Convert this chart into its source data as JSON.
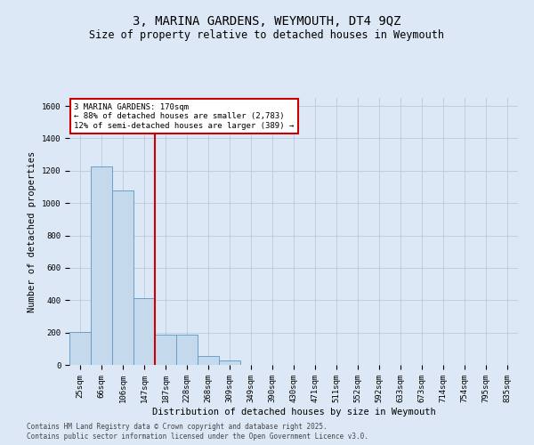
{
  "title_line1": "3, MARINA GARDENS, WEYMOUTH, DT4 9QZ",
  "title_line2": "Size of property relative to detached houses in Weymouth",
  "xlabel": "Distribution of detached houses by size in Weymouth",
  "ylabel": "Number of detached properties",
  "categories": [
    "25sqm",
    "66sqm",
    "106sqm",
    "147sqm",
    "187sqm",
    "228sqm",
    "268sqm",
    "309sqm",
    "349sqm",
    "390sqm",
    "430sqm",
    "471sqm",
    "511sqm",
    "552sqm",
    "592sqm",
    "633sqm",
    "673sqm",
    "714sqm",
    "754sqm",
    "795sqm",
    "835sqm"
  ],
  "values": [
    205,
    1225,
    1080,
    415,
    185,
    185,
    55,
    30,
    0,
    0,
    0,
    0,
    0,
    0,
    0,
    0,
    0,
    0,
    0,
    0,
    0
  ],
  "bar_color": "#c5d9ec",
  "bar_edge_color": "#6a9fc8",
  "grid_color": "#c0cfe0",
  "background_color": "#dce8f5",
  "vline_x_index": 4.0,
  "annotation_text": "3 MARINA GARDENS: 170sqm\n← 88% of detached houses are smaller (2,783)\n12% of semi-detached houses are larger (389) →",
  "annotation_box_facecolor": "#ffffff",
  "annotation_box_edgecolor": "#cc0000",
  "vline_color": "#cc0000",
  "ylim": [
    0,
    1650
  ],
  "yticks": [
    0,
    200,
    400,
    600,
    800,
    1000,
    1200,
    1400,
    1600
  ],
  "footer_line1": "Contains HM Land Registry data © Crown copyright and database right 2025.",
  "footer_line2": "Contains public sector information licensed under the Open Government Licence v3.0.",
  "title_fontsize": 10,
  "subtitle_fontsize": 8.5,
  "ylabel_fontsize": 7.5,
  "xlabel_fontsize": 7.5,
  "tick_fontsize": 6.5,
  "annotation_fontsize": 6.5,
  "footer_fontsize": 5.5
}
